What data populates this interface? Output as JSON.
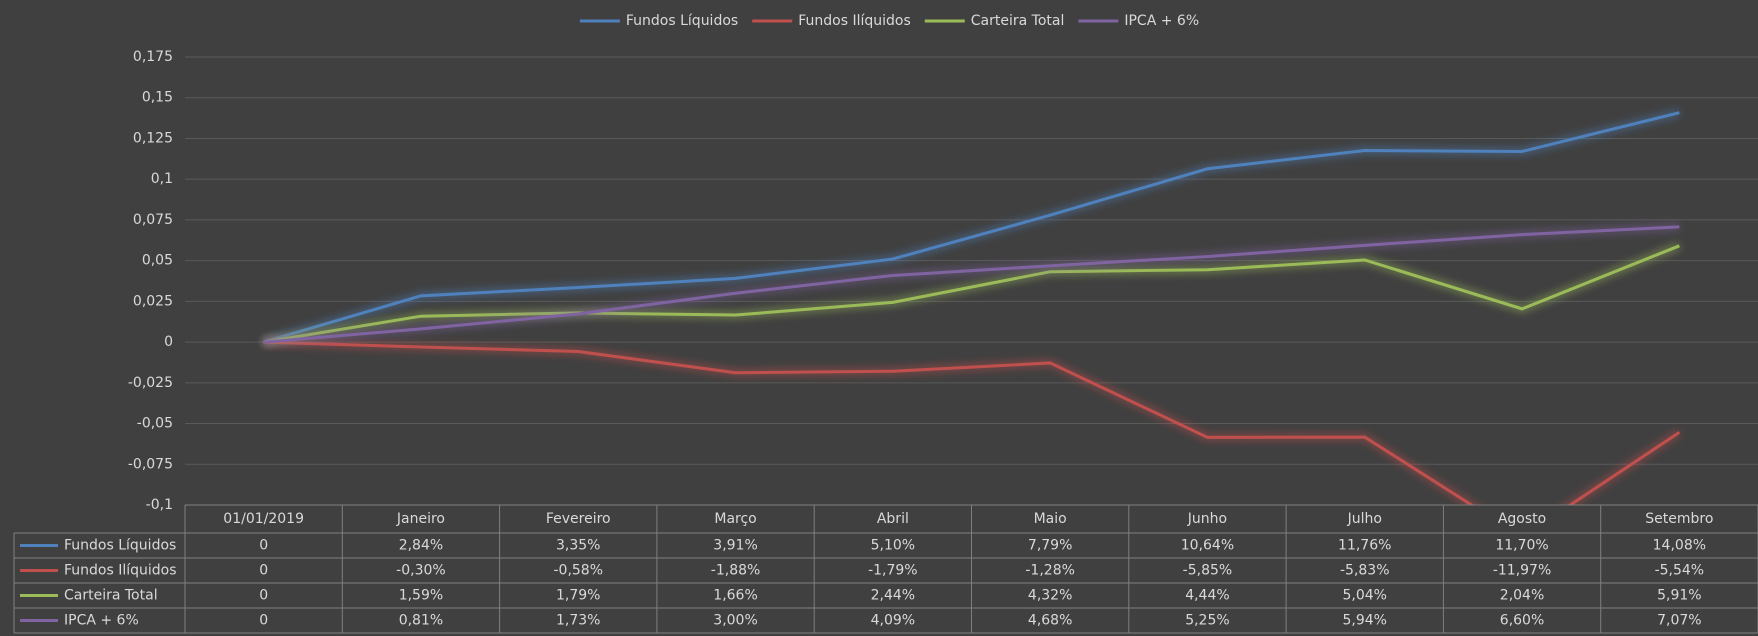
{
  "chart_data": {
    "type": "line",
    "legend": "top",
    "grid": true,
    "data_table": true,
    "categories": [
      "01/01/2019",
      "Janeiro",
      "Fevereiro",
      "Março",
      "Abril",
      "Maio",
      "Junho",
      "Julho",
      "Agosto",
      "Setembro"
    ],
    "ylim": [
      -0.1,
      0.175
    ],
    "yticks": [
      {
        "value": -0.1,
        "label": "-0,1"
      },
      {
        "value": -0.075,
        "label": "-0,075"
      },
      {
        "value": -0.05,
        "label": "-0,05"
      },
      {
        "value": -0.025,
        "label": "-0,025"
      },
      0,
      {
        "value": 0.025,
        "label": "0,025"
      },
      {
        "value": 0.05,
        "label": "0,05"
      },
      {
        "value": 0.075,
        "label": "0,075"
      },
      {
        "value": 0.1,
        "label": "0,1"
      },
      {
        "value": 0.125,
        "label": "0,125"
      },
      {
        "value": 0.15,
        "label": "0,15"
      },
      {
        "value": 0.175,
        "label": "0,175"
      }
    ],
    "series": [
      {
        "name": "Fundos Líquidos",
        "color": "#4f81bd",
        "values": [
          0,
          0.0284,
          0.0335,
          0.0391,
          0.051,
          0.0779,
          0.1064,
          0.1176,
          0.117,
          0.1408
        ],
        "value_labels": [
          "0",
          "2,84%",
          "3,35%",
          "3,91%",
          "5,10%",
          "7,79%",
          "10,64%",
          "11,76%",
          "11,70%",
          "14,08%"
        ]
      },
      {
        "name": "Fundos Ilíquidos",
        "color": "#c0504d",
        "values": [
          0,
          -0.003,
          -0.0058,
          -0.0188,
          -0.0179,
          -0.0128,
          -0.0585,
          -0.0583,
          -0.1197,
          -0.0554
        ],
        "value_labels": [
          "0",
          "-0,30%",
          "-0,58%",
          "-1,88%",
          "-1,79%",
          "-1,28%",
          "-5,85%",
          "-5,83%",
          "-11,97%",
          "-5,54%"
        ]
      },
      {
        "name": "Carteira Total",
        "color": "#9bbb59",
        "values": [
          0,
          0.0159,
          0.0179,
          0.0166,
          0.0244,
          0.0432,
          0.0444,
          0.0504,
          0.0204,
          0.0591
        ],
        "value_labels": [
          "0",
          "1,59%",
          "1,79%",
          "1,66%",
          "2,44%",
          "4,32%",
          "4,44%",
          "5,04%",
          "2,04%",
          "5,91%"
        ]
      },
      {
        "name": "IPCA + 6%",
        "color": "#8064a2",
        "values": [
          0,
          0.0081,
          0.0173,
          0.03,
          0.0409,
          0.0468,
          0.0525,
          0.0594,
          0.066,
          0.0707
        ],
        "value_labels": [
          "0",
          "0,81%",
          "1,73%",
          "3,00%",
          "4,09%",
          "4,68%",
          "5,25%",
          "5,94%",
          "6,60%",
          "7,07%"
        ]
      }
    ]
  }
}
